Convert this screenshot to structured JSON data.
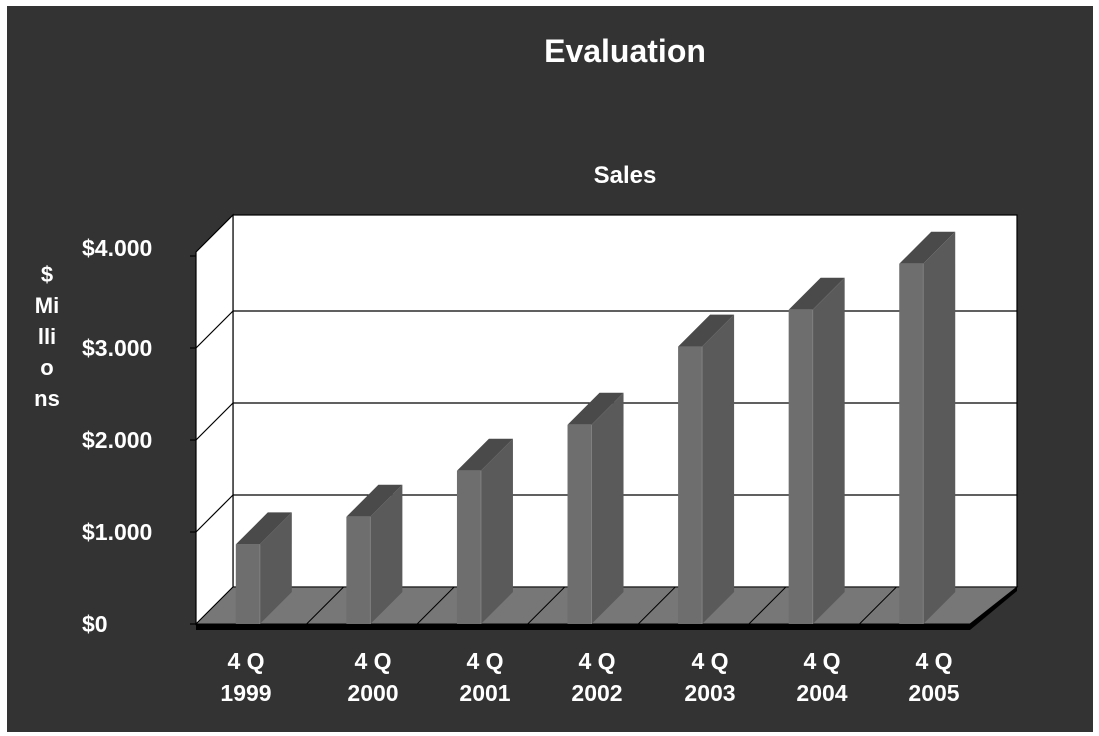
{
  "slide": {
    "background": "#333333"
  },
  "chart_data": {
    "type": "bar",
    "title": "Evaluation",
    "subtitle": "Sales",
    "ylabel": "$\nMi\nlli\no\nns",
    "xlabel": "",
    "categories": [
      [
        "4 Q",
        "1999"
      ],
      [
        "4 Q",
        "2000"
      ],
      [
        "4 Q",
        "2001"
      ],
      [
        "4 Q",
        "2002"
      ],
      [
        "4 Q",
        "2003"
      ],
      [
        "4 Q",
        "2004"
      ],
      [
        "4 Q",
        "2005"
      ]
    ],
    "values": [
      900,
      1200,
      1700,
      2200,
      3050,
      3450,
      3950
    ],
    "yticks": [
      "$0",
      "$1.000",
      "$2.000",
      "$3.000",
      "$4.000"
    ],
    "ylim": [
      0,
      4000
    ],
    "grid": true,
    "legend": "none",
    "colors": {
      "bar_front": "#6e6e6e",
      "bar_side": "#5a5a5a",
      "bar_top": "#4a4a4a",
      "floor": "#777777",
      "wall": "#ffffff",
      "base": "#000000",
      "text": "#ffffff"
    }
  }
}
